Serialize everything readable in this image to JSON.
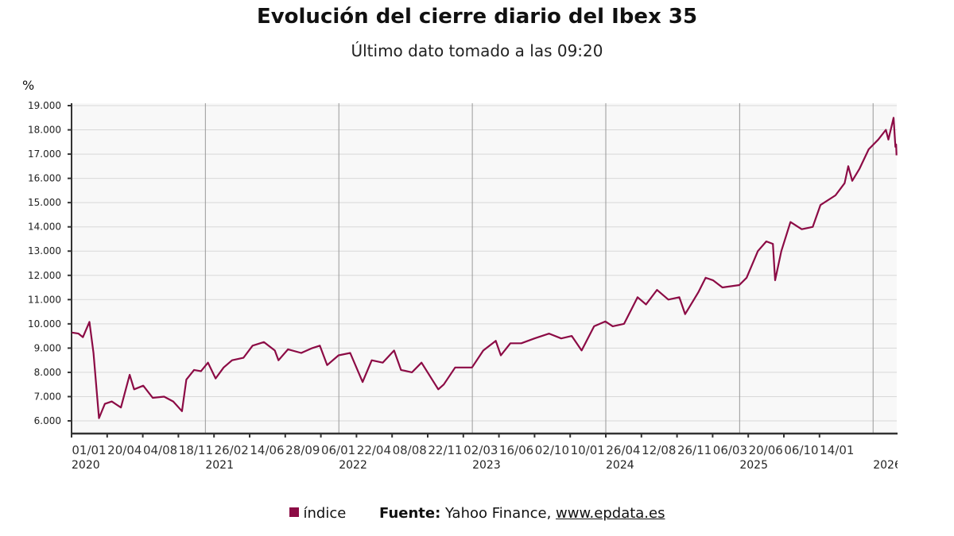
{
  "chart_data": {
    "type": "line",
    "title": "Evolución del cierre diario del Ibex 35",
    "subtitle": "Último dato tomado a las 09:20",
    "ylabel": "%",
    "ylim": [
      6000,
      19000
    ],
    "yticks": [
      6000,
      7000,
      8000,
      9000,
      10000,
      11000,
      12000,
      13000,
      14000,
      15000,
      16000,
      17000,
      18000,
      19000
    ],
    "ytick_labels": [
      "6.000",
      "7.000",
      "8.000",
      "9.000",
      "10.000",
      "11.000",
      "12.000",
      "13.000",
      "14.000",
      "15.000",
      "16.000",
      "17.000",
      "18.000",
      "19.000"
    ],
    "xlim": [
      "2020-01-01",
      "2026-03-06"
    ],
    "xtick_labels": [
      "01/01",
      "20/04",
      "04/08",
      "18/11",
      "26/02",
      "14/06",
      "28/09",
      "06/01",
      "22/04",
      "08/08",
      "22/11",
      "02/03",
      "16/06",
      "02/10",
      "10/01",
      "26/04",
      "12/08",
      "26/11",
      "06/03",
      "20/06",
      "06/10",
      "14/01"
    ],
    "year_labels": [
      {
        "date": "2020-01-01",
        "label": "2020"
      },
      {
        "date": "2021-01-01",
        "label": "2021"
      },
      {
        "date": "2022-01-01",
        "label": "2022"
      },
      {
        "date": "2023-01-01",
        "label": "2023"
      },
      {
        "date": "2024-01-01",
        "label": "2024"
      },
      {
        "date": "2025-01-01",
        "label": "2025"
      },
      {
        "date": "2026-01-01",
        "label": "2026"
      }
    ],
    "grid": true,
    "legend_position": "bottom",
    "series": [
      {
        "name": "índice",
        "color": "#8c0b45",
        "points": [
          [
            "2020-01-02",
            9640
          ],
          [
            "2020-01-20",
            9600
          ],
          [
            "2020-02-01",
            9450
          ],
          [
            "2020-02-19",
            10080
          ],
          [
            "2020-03-01",
            8800
          ],
          [
            "2020-03-16",
            6110
          ],
          [
            "2020-04-01",
            6700
          ],
          [
            "2020-04-20",
            6800
          ],
          [
            "2020-05-15",
            6550
          ],
          [
            "2020-06-08",
            7900
          ],
          [
            "2020-06-20",
            7300
          ],
          [
            "2020-07-15",
            7450
          ],
          [
            "2020-08-10",
            6950
          ],
          [
            "2020-09-10",
            7000
          ],
          [
            "2020-10-05",
            6800
          ],
          [
            "2020-10-29",
            6400
          ],
          [
            "2020-11-10",
            7700
          ],
          [
            "2020-12-01",
            8100
          ],
          [
            "2020-12-20",
            8050
          ],
          [
            "2021-01-08",
            8400
          ],
          [
            "2021-01-29",
            7750
          ],
          [
            "2021-02-20",
            8200
          ],
          [
            "2021-03-15",
            8500
          ],
          [
            "2021-04-15",
            8600
          ],
          [
            "2021-05-10",
            9100
          ],
          [
            "2021-06-10",
            9250
          ],
          [
            "2021-07-10",
            8900
          ],
          [
            "2021-07-20",
            8500
          ],
          [
            "2021-08-15",
            8950
          ],
          [
            "2021-09-20",
            8800
          ],
          [
            "2021-10-20",
            9000
          ],
          [
            "2021-11-10",
            9100
          ],
          [
            "2021-11-30",
            8300
          ],
          [
            "2021-12-31",
            8700
          ],
          [
            "2022-02-01",
            8800
          ],
          [
            "2022-03-07",
            7600
          ],
          [
            "2022-04-01",
            8500
          ],
          [
            "2022-05-01",
            8400
          ],
          [
            "2022-06-01",
            8900
          ],
          [
            "2022-06-20",
            8100
          ],
          [
            "2022-07-20",
            8000
          ],
          [
            "2022-08-15",
            8400
          ],
          [
            "2022-09-30",
            7300
          ],
          [
            "2022-10-15",
            7500
          ],
          [
            "2022-11-15",
            8200
          ],
          [
            "2022-12-31",
            8200
          ],
          [
            "2023-01-31",
            8900
          ],
          [
            "2023-03-06",
            9300
          ],
          [
            "2023-03-20",
            8700
          ],
          [
            "2023-04-15",
            9200
          ],
          [
            "2023-05-15",
            9200
          ],
          [
            "2023-06-20",
            9400
          ],
          [
            "2023-07-30",
            9600
          ],
          [
            "2023-09-01",
            9400
          ],
          [
            "2023-09-30",
            9500
          ],
          [
            "2023-10-27",
            8900
          ],
          [
            "2023-11-30",
            9900
          ],
          [
            "2023-12-31",
            10100
          ],
          [
            "2024-01-20",
            9900
          ],
          [
            "2024-02-20",
            10000
          ],
          [
            "2024-03-28",
            11100
          ],
          [
            "2024-04-20",
            10800
          ],
          [
            "2024-05-20",
            11400
          ],
          [
            "2024-06-20",
            11000
          ],
          [
            "2024-07-20",
            11100
          ],
          [
            "2024-08-05",
            10400
          ],
          [
            "2024-09-10",
            11300
          ],
          [
            "2024-09-30",
            11900
          ],
          [
            "2024-10-20",
            11800
          ],
          [
            "2024-11-15",
            11500
          ],
          [
            "2024-12-31",
            11600
          ],
          [
            "2025-01-20",
            11900
          ],
          [
            "2025-02-20",
            13000
          ],
          [
            "2025-03-15",
            13400
          ],
          [
            "2025-04-02",
            13300
          ],
          [
            "2025-04-08",
            11800
          ],
          [
            "2025-04-25",
            13000
          ],
          [
            "2025-05-20",
            14200
          ],
          [
            "2025-06-20",
            13900
          ],
          [
            "2025-07-20",
            14000
          ],
          [
            "2025-08-10",
            14900
          ],
          [
            "2025-09-20",
            15300
          ],
          [
            "2025-10-15",
            15800
          ],
          [
            "2025-10-25",
            16500
          ],
          [
            "2025-11-05",
            15900
          ],
          [
            "2025-11-25",
            16400
          ],
          [
            "2025-12-20",
            17200
          ],
          [
            "2026-01-15",
            17600
          ],
          [
            "2026-02-05",
            18000
          ],
          [
            "2026-02-12",
            17600
          ],
          [
            "2026-02-26",
            18500
          ],
          [
            "2026-03-03",
            17300
          ],
          [
            "2026-03-05",
            17400
          ],
          [
            "2026-03-06",
            16950
          ]
        ]
      }
    ]
  },
  "legend": {
    "swatch_label": "índice"
  },
  "source": {
    "label": "Fuente:",
    "text": " Yahoo Finance, ",
    "link": "www.epdata.es"
  }
}
